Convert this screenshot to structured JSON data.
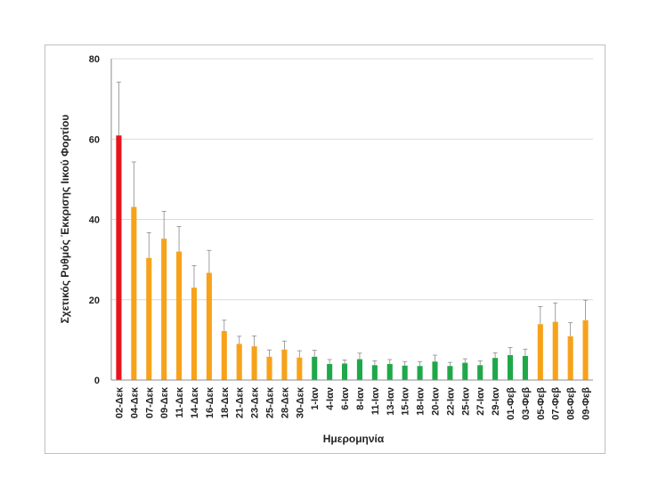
{
  "chart_data": {
    "type": "bar",
    "title": "",
    "xlabel": "Ημερομηνία",
    "ylabel": "Σχετικός Ρυθμός Έκκρισης Ιικού Φορτίου",
    "ylim": [
      0,
      80
    ],
    "yticks": [
      0,
      20,
      40,
      60,
      80
    ],
    "grid": true,
    "legend": "none",
    "colors": {
      "red": "#e8141b",
      "orange": "#f7a21b",
      "green": "#1fa84a",
      "error_bar": "#8a8a8a",
      "grid": "#d9d9d9"
    },
    "categories": [
      "02-Δεκ",
      "04-Δεκ",
      "07-Δεκ",
      "09-Δεκ",
      "11-Δεκ",
      "14-Δεκ",
      "16-Δεκ",
      "18-Δεκ",
      "21-Δεκ",
      "23-Δεκ",
      "25-Δεκ",
      "28-Δεκ",
      "30-Δεκ",
      "1-Ιαν",
      "4-Ιαν",
      "6-Ιαν",
      "8-Ιαν",
      "11-Ιαν",
      "13-Ιαν",
      "15-Ιαν",
      "18-Ιαν",
      "20-Ιαν",
      "22-Ιαν",
      "25-Ιαν",
      "27-Ιαν",
      "29-Ιαν",
      "01-Φεβ",
      "03-Φεβ",
      "05-Φεβ",
      "07-Φεβ",
      "08-Φεβ",
      "09-Φεβ"
    ],
    "values": [
      60.9,
      43.1,
      30.4,
      35.2,
      32.0,
      23.0,
      26.7,
      12.2,
      9.0,
      8.4,
      5.8,
      7.6,
      5.6,
      5.8,
      4.0,
      4.1,
      5.2,
      3.7,
      4.0,
      3.6,
      3.5,
      4.6,
      3.5,
      4.3,
      3.7,
      5.5,
      6.2,
      6.0,
      13.9,
      14.5,
      10.9,
      14.9
    ],
    "error_upper": [
      74.2,
      54.3,
      36.7,
      42.0,
      38.2,
      28.5,
      32.3,
      14.9,
      10.9,
      11.0,
      7.5,
      9.7,
      7.3,
      7.4,
      5.1,
      5.0,
      6.7,
      4.8,
      5.1,
      4.6,
      4.6,
      6.2,
      4.4,
      5.3,
      4.8,
      6.8,
      8.1,
      7.7,
      18.3,
      19.2,
      14.3,
      19.9
    ],
    "bar_colors": [
      "red",
      "orange",
      "orange",
      "orange",
      "orange",
      "orange",
      "orange",
      "orange",
      "orange",
      "orange",
      "orange",
      "orange",
      "orange",
      "green",
      "green",
      "green",
      "green",
      "green",
      "green",
      "green",
      "green",
      "green",
      "green",
      "green",
      "green",
      "green",
      "green",
      "green",
      "orange",
      "orange",
      "orange",
      "orange"
    ]
  }
}
